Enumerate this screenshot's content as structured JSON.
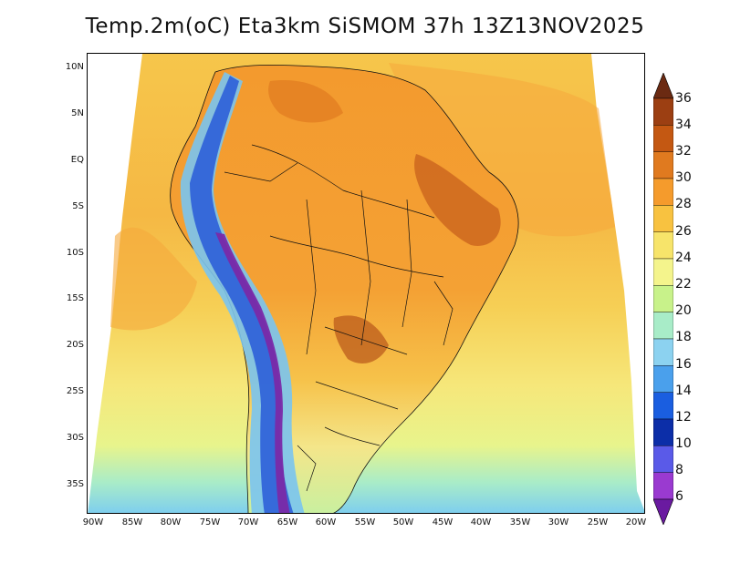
{
  "title": "Temp.2m(oC) Eta3km SiSMOM 37h 13Z13NOV2025",
  "lat_ticks": [
    "10N",
    "5N",
    "EQ",
    "5S",
    "10S",
    "15S",
    "20S",
    "25S",
    "30S",
    "35S"
  ],
  "lon_ticks": [
    "90W",
    "85W",
    "80W",
    "75W",
    "70W",
    "65W",
    "60W",
    "55W",
    "50W",
    "45W",
    "40W",
    "35W",
    "30W",
    "25W",
    "20W"
  ],
  "colorbar": {
    "labels": [
      "36",
      "34",
      "32",
      "30",
      "28",
      "26",
      "24",
      "22",
      "20",
      "18",
      "16",
      "14",
      "12",
      "10",
      "8",
      "6"
    ],
    "colors": [
      "#6b2a12",
      "#9c3f12",
      "#c45812",
      "#e07a1f",
      "#f59b2c",
      "#f8c240",
      "#f7e46a",
      "#f4f48c",
      "#c8f28a",
      "#a8ecc8",
      "#8cd2f0",
      "#4aa0ec",
      "#1a5ee0",
      "#0c2ea8",
      "#5a5ae8",
      "#9a3ad0",
      "#6a1aa0"
    ]
  },
  "palette": {
    "ocean_warm": "#f5b442",
    "ocean_mid": "#f7cc50",
    "ocean_cool": "#f6e97a",
    "ocean_cold": "#d6f291",
    "land": "#f29b2e",
    "land_hot": "#c8601c",
    "andes_high": "#7a2aa8",
    "andes_mid": "#2e5fd8",
    "andes_low": "#7ac4f0"
  }
}
